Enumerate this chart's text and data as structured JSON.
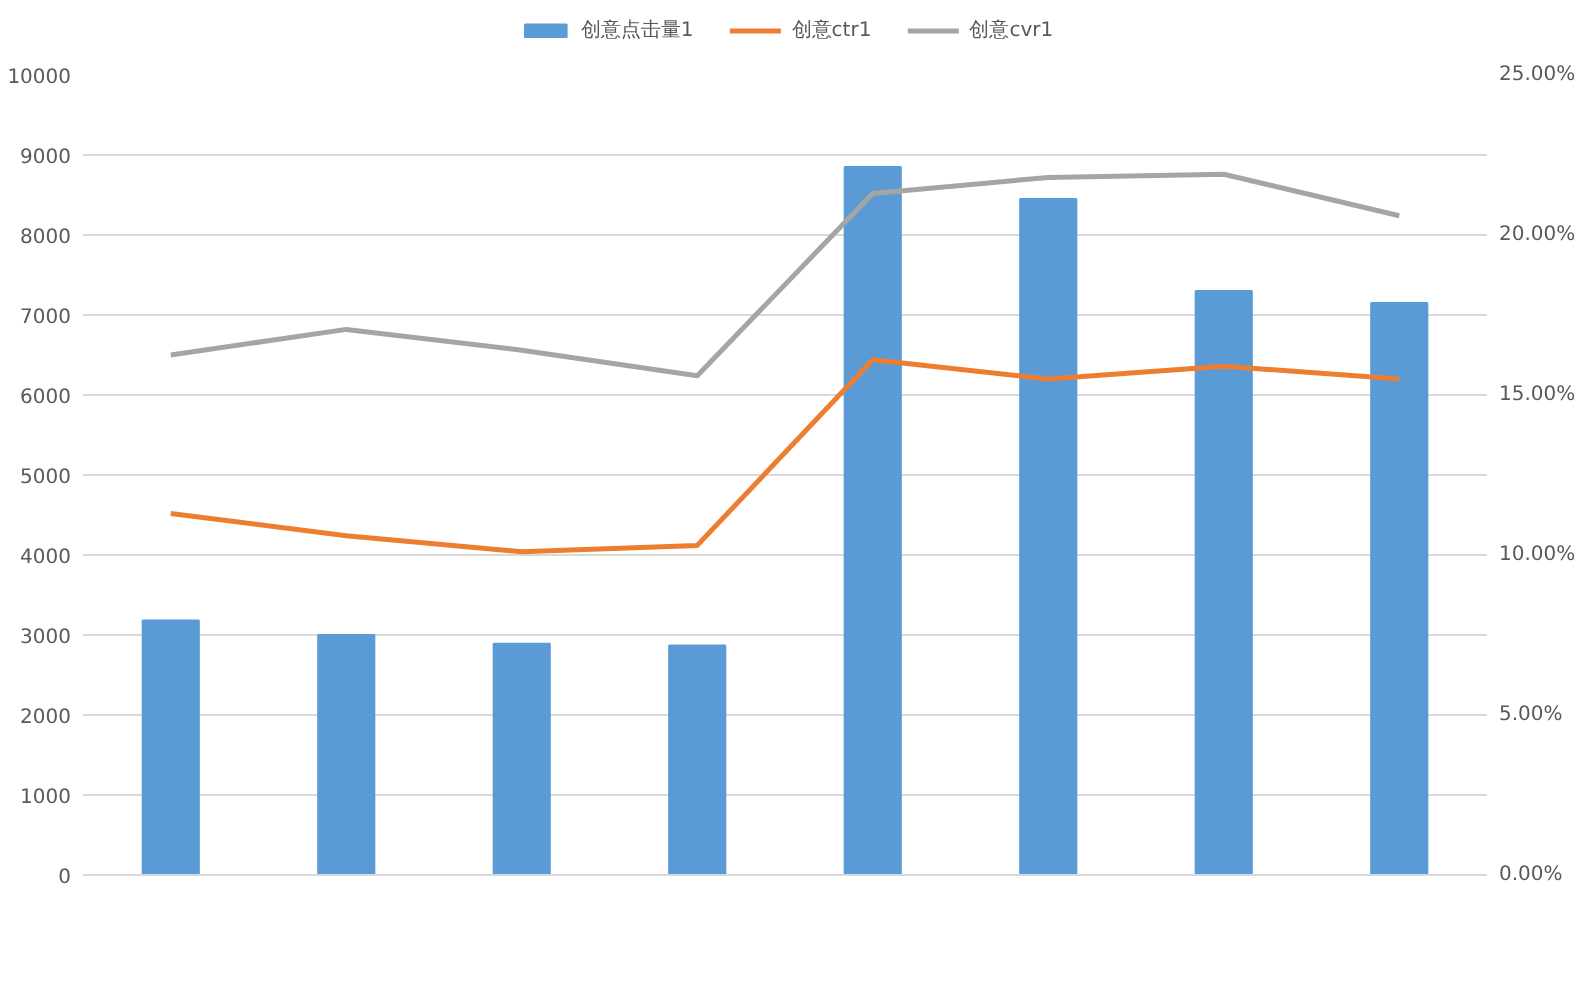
{
  "chart_data": {
    "type": "bar",
    "categories": [
      null,
      null,
      null,
      null,
      null,
      null,
      null,
      null
    ],
    "series": [
      {
        "name": "创意点击量1",
        "color": "#5b9bd5",
        "values": [
          3180,
          3000,
          2890,
          2870,
          8850,
          8450,
          7300,
          7150
        ]
      },
      {
        "name": "创意ctr1",
        "type": "line",
        "axis": "y2",
        "color": "#ed7d31",
        "values": [
          11.3,
          10.6,
          10.1,
          10.3,
          16.1,
          15.5,
          15.9,
          15.5
        ]
      },
      {
        "name": "创意cvr1",
        "type": "line",
        "axis": "y2",
        "color": "#a5a5a5",
        "values": [
          16.25,
          17.05,
          16.4,
          15.6,
          21.3,
          21.8,
          21.9,
          20.6
        ]
      }
    ],
    "ylim": [
      0,
      10000
    ],
    "yticks": [
      0,
      1000,
      2000,
      3000,
      4000,
      5000,
      6000,
      7000,
      8000,
      9000,
      10000
    ],
    "y2lim": [
      0,
      25
    ],
    "y2ticks": [
      {
        "value": 0,
        "label": "0.00%"
      },
      {
        "value": 5,
        "label": "5.00%"
      },
      {
        "value": 10,
        "label": "10.00%"
      },
      {
        "value": 15,
        "label": "15.00%"
      },
      {
        "value": 20,
        "label": "20.00%"
      },
      {
        "value": 25,
        "label": "25.00%"
      }
    ],
    "grid": "y",
    "legend": "top"
  }
}
